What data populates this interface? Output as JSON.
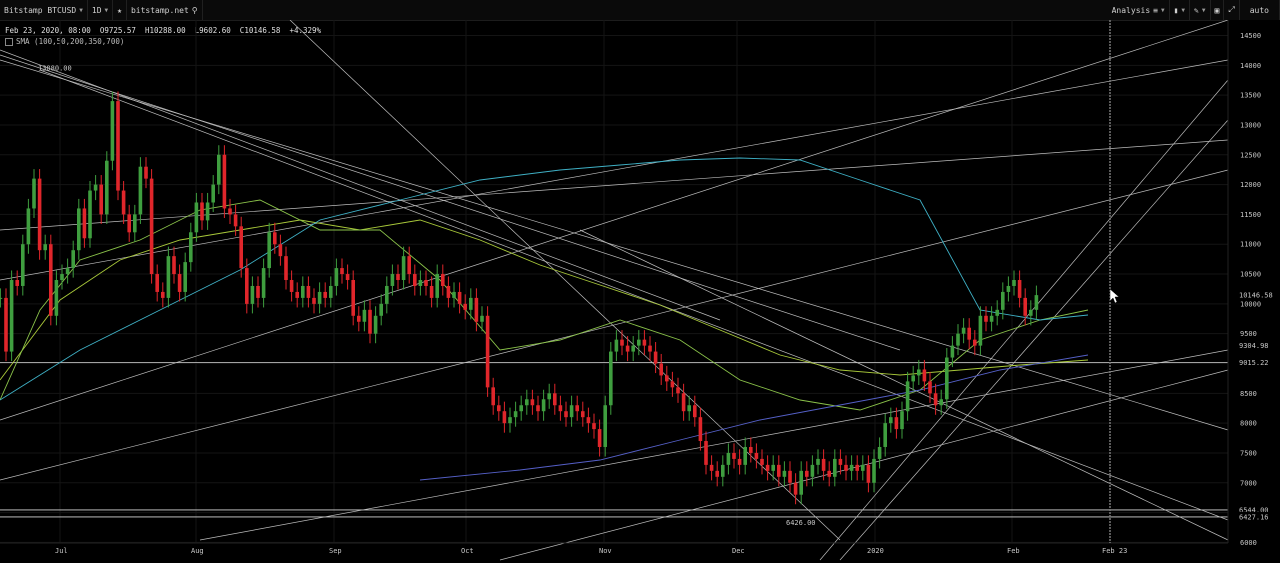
{
  "toolbar": {
    "symbol": "Bitstamp BTCUSD",
    "interval": "1D",
    "site": "bitstamp.net",
    "analysis": "Analysis",
    "scale_mode": "auto"
  },
  "legend": {
    "ohlc": "Feb 23, 2020, 08:00  O9725.57  H10288.00  L9602.60  C10146.58  +4.329%",
    "indicator": "SMA (100,50,200,350,700)"
  },
  "chart_data": {
    "type": "candlestick",
    "x_ticks": [
      "Jul",
      "Aug",
      "Sep",
      "Oct",
      "Nov",
      "Dec",
      "2020",
      "Feb",
      "Feb 23"
    ],
    "y_ticks": [
      14500,
      14000,
      13500,
      13000,
      12500,
      12000,
      11500,
      11000,
      10500,
      10000,
      9500,
      9000,
      8500,
      8000,
      7500,
      7000,
      6500,
      6000
    ],
    "ylim": [
      5990,
      14760
    ],
    "price_labels": [
      {
        "text": "10146.58",
        "value": 10146.58
      },
      {
        "text": "9304.98",
        "value": 9304.98
      },
      {
        "text": "9015.22",
        "value": 9015.22
      },
      {
        "text": "6544.00",
        "value": 6544
      },
      {
        "text": "6427.16",
        "value": 6427.16
      }
    ],
    "annotations": [
      {
        "text": "13880.00",
        "value": 13880
      },
      {
        "text": "6426.00",
        "value": 6426
      }
    ],
    "horizontal_levels": [
      9015.22,
      6544,
      6427.16
    ],
    "candles": [
      [
        9,
        10100
      ],
      [
        10,
        9200
      ],
      [
        11,
        10400
      ],
      [
        12,
        10300
      ],
      [
        13,
        11000
      ],
      [
        14,
        11600
      ],
      [
        15,
        12100
      ],
      [
        16,
        10900
      ],
      [
        17,
        11000
      ],
      [
        18,
        9800
      ],
      [
        19,
        10400
      ],
      [
        20,
        10500
      ],
      [
        21,
        10600
      ],
      [
        22,
        10900
      ],
      [
        23,
        11600
      ],
      [
        24,
        11100
      ],
      [
        25,
        11900
      ],
      [
        26,
        12000
      ],
      [
        27,
        11500
      ],
      [
        28,
        12400
      ],
      [
        29,
        13400
      ],
      [
        30,
        11900
      ],
      [
        31,
        11500
      ],
      [
        32,
        11200
      ],
      [
        33,
        11500
      ],
      [
        34,
        12300
      ],
      [
        35,
        12100
      ],
      [
        36,
        10500
      ],
      [
        37,
        10200
      ],
      [
        38,
        10100
      ],
      [
        39,
        10800
      ],
      [
        40,
        10500
      ],
      [
        41,
        10200
      ],
      [
        42,
        10700
      ],
      [
        43,
        11200
      ],
      [
        44,
        11700
      ],
      [
        45,
        11400
      ],
      [
        46,
        11700
      ],
      [
        47,
        12000
      ],
      [
        48,
        12500
      ],
      [
        49,
        11600
      ],
      [
        50,
        11500
      ],
      [
        51,
        11300
      ],
      [
        52,
        10600
      ],
      [
        53,
        10000
      ],
      [
        54,
        10300
      ],
      [
        55,
        10100
      ],
      [
        56,
        10600
      ],
      [
        57,
        11200
      ],
      [
        58,
        11000
      ],
      [
        59,
        10800
      ],
      [
        60,
        10400
      ],
      [
        61,
        10200
      ],
      [
        62,
        10100
      ],
      [
        63,
        10300
      ],
      [
        64,
        10100
      ],
      [
        65,
        10000
      ],
      [
        66,
        10200
      ],
      [
        67,
        10100
      ],
      [
        68,
        10300
      ],
      [
        69,
        10600
      ],
      [
        70,
        10500
      ],
      [
        71,
        10400
      ],
      [
        72,
        9800
      ],
      [
        73,
        9700
      ],
      [
        74,
        9900
      ],
      [
        75,
        9500
      ],
      [
        76,
        9800
      ],
      [
        77,
        10000
      ],
      [
        78,
        10300
      ],
      [
        79,
        10500
      ],
      [
        80,
        10400
      ],
      [
        81,
        10800
      ],
      [
        82,
        10500
      ],
      [
        83,
        10300
      ],
      [
        84,
        10400
      ],
      [
        85,
        10300
      ],
      [
        86,
        10100
      ],
      [
        87,
        10500
      ],
      [
        88,
        10300
      ],
      [
        89,
        10100
      ],
      [
        90,
        10200
      ],
      [
        91,
        10000
      ],
      [
        92,
        9900
      ],
      [
        93,
        10100
      ],
      [
        94,
        9700
      ],
      [
        95,
        9800
      ],
      [
        96,
        8600
      ],
      [
        97,
        8300
      ],
      [
        98,
        8200
      ],
      [
        99,
        8000
      ],
      [
        100,
        8100
      ],
      [
        101,
        8200
      ],
      [
        102,
        8300
      ],
      [
        103,
        8400
      ],
      [
        104,
        8300
      ],
      [
        105,
        8200
      ],
      [
        106,
        8400
      ],
      [
        107,
        8500
      ],
      [
        108,
        8300
      ],
      [
        109,
        8200
      ],
      [
        110,
        8100
      ],
      [
        111,
        8300
      ],
      [
        112,
        8200
      ],
      [
        113,
        8100
      ],
      [
        114,
        8000
      ],
      [
        115,
        7900
      ],
      [
        116,
        7600
      ],
      [
        117,
        8300
      ],
      [
        118,
        9200
      ],
      [
        119,
        9400
      ],
      [
        120,
        9300
      ],
      [
        121,
        9200
      ],
      [
        122,
        9300
      ],
      [
        123,
        9400
      ],
      [
        124,
        9300
      ],
      [
        125,
        9200
      ],
      [
        126,
        9000
      ],
      [
        127,
        8800
      ],
      [
        128,
        8700
      ],
      [
        129,
        8600
      ],
      [
        130,
        8500
      ],
      [
        131,
        8200
      ],
      [
        132,
        8300
      ],
      [
        133,
        8100
      ],
      [
        134,
        7700
      ],
      [
        135,
        7300
      ],
      [
        136,
        7200
      ],
      [
        137,
        7100
      ],
      [
        138,
        7300
      ],
      [
        139,
        7500
      ],
      [
        140,
        7400
      ],
      [
        141,
        7300
      ],
      [
        142,
        7600
      ],
      [
        143,
        7500
      ],
      [
        144,
        7400
      ],
      [
        145,
        7300
      ],
      [
        146,
        7200
      ],
      [
        147,
        7300
      ],
      [
        148,
        7100
      ],
      [
        149,
        7200
      ],
      [
        150,
        7000
      ],
      [
        151,
        6800
      ],
      [
        152,
        7200
      ],
      [
        153,
        7100
      ],
      [
        154,
        7300
      ],
      [
        155,
        7400
      ],
      [
        156,
        7200
      ],
      [
        157,
        7100
      ],
      [
        158,
        7400
      ],
      [
        159,
        7300
      ],
      [
        160,
        7200
      ],
      [
        161,
        7300
      ],
      [
        162,
        7200
      ],
      [
        163,
        7300
      ],
      [
        164,
        7000
      ],
      [
        165,
        7400
      ],
      [
        166,
        7600
      ],
      [
        167,
        8000
      ],
      [
        168,
        8100
      ],
      [
        169,
        7900
      ],
      [
        170,
        8200
      ],
      [
        171,
        8700
      ],
      [
        172,
        8800
      ],
      [
        173,
        8900
      ],
      [
        174,
        8700
      ],
      [
        175,
        8500
      ],
      [
        176,
        8300
      ],
      [
        177,
        8400
      ],
      [
        178,
        9100
      ],
      [
        179,
        9300
      ],
      [
        180,
        9500
      ],
      [
        181,
        9600
      ],
      [
        182,
        9400
      ],
      [
        183,
        9300
      ],
      [
        184,
        9800
      ],
      [
        185,
        9700
      ],
      [
        186,
        9800
      ],
      [
        187,
        9900
      ],
      [
        188,
        10200
      ],
      [
        189,
        10300
      ],
      [
        190,
        10400
      ],
      [
        191,
        10100
      ],
      [
        192,
        9800
      ],
      [
        193,
        9900
      ],
      [
        194,
        10146.58
      ]
    ]
  }
}
